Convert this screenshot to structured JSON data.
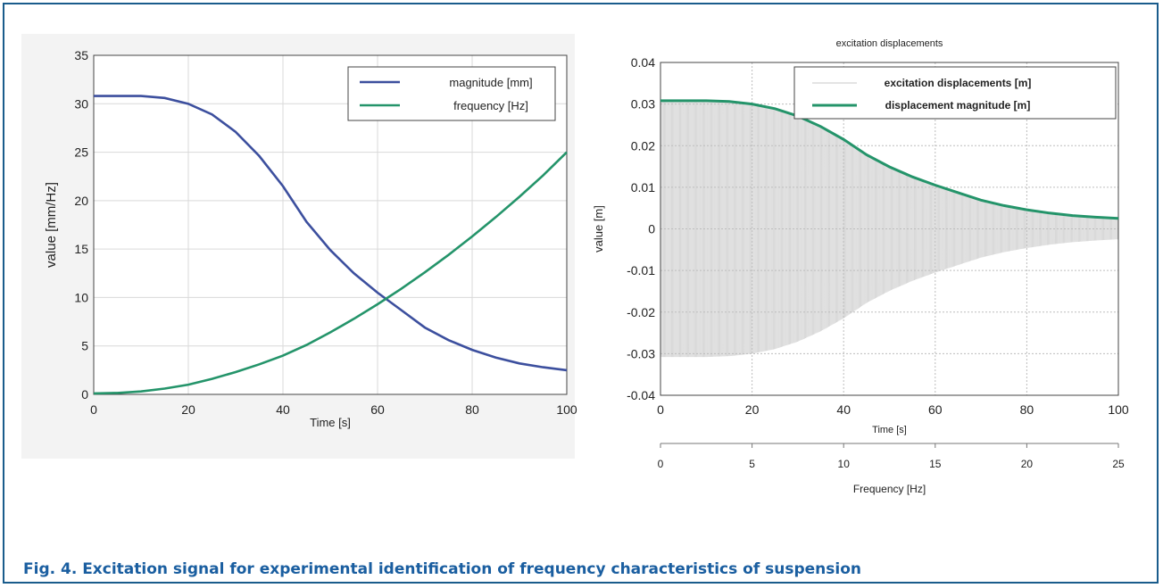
{
  "caption": "Fig. 4. Excitation signal for experimental identification of frequency characteristics of suspension",
  "colors": {
    "frame": "#1a5c8c",
    "caption": "#1a5ea0",
    "magnitude": "#3c4f9e",
    "frequency": "#24946a",
    "excitation": "#c8c8c8",
    "grid": "#d9d9d9"
  },
  "chart_data": [
    {
      "type": "line",
      "title": "",
      "xlabel": "Time [s]",
      "ylabel": "value    [mm/Hz]",
      "xlim": [
        0,
        100
      ],
      "ylim": [
        0,
        35
      ],
      "xticks": [
        0,
        20,
        40,
        60,
        80,
        100
      ],
      "yticks": [
        0,
        5,
        10,
        15,
        20,
        25,
        30,
        35
      ],
      "grid": true,
      "legend_position": "top-right",
      "x": [
        0,
        5,
        10,
        15,
        20,
        25,
        30,
        35,
        40,
        45,
        50,
        55,
        60,
        65,
        70,
        75,
        80,
        85,
        90,
        95,
        100
      ],
      "series": [
        {
          "name": "magnitude [mm]",
          "values": [
            30.8,
            30.8,
            30.8,
            30.6,
            30.0,
            28.9,
            27.1,
            24.6,
            21.5,
            17.8,
            14.9,
            12.5,
            10.5,
            8.7,
            6.9,
            5.6,
            4.6,
            3.8,
            3.2,
            2.8,
            2.5
          ]
        },
        {
          "name": "frequency [Hz]",
          "values": [
            0.1,
            0.15,
            0.3,
            0.6,
            1.0,
            1.6,
            2.3,
            3.1,
            4.0,
            5.1,
            6.4,
            7.8,
            9.3,
            10.9,
            12.6,
            14.4,
            16.3,
            18.3,
            20.4,
            22.6,
            25.0
          ]
        }
      ]
    },
    {
      "type": "line",
      "title": "excitation displacements",
      "xlabel": "Time [s]",
      "ylabel": "value    [m]",
      "x2label": "Frequency [Hz]",
      "xlim": [
        0,
        100
      ],
      "ylim": [
        -0.04,
        0.04
      ],
      "x2lim": [
        0,
        25
      ],
      "xticks": [
        0,
        20,
        40,
        60,
        80,
        100
      ],
      "x2ticks": [
        0,
        5,
        10,
        15,
        20,
        25
      ],
      "yticks": [
        -0.04,
        -0.03,
        -0.02,
        -0.01,
        0,
        0.01,
        0.02,
        0.03,
        0.04
      ],
      "ytick_labels": [
        "-0.04",
        "-0.03",
        "-0.02",
        "-0.01",
        "0",
        "0.01",
        "0.02",
        "0.03",
        "0.04"
      ],
      "grid": true,
      "legend_position": "top-right",
      "x": [
        0,
        5,
        10,
        15,
        20,
        25,
        30,
        35,
        40,
        45,
        50,
        55,
        60,
        65,
        70,
        75,
        80,
        85,
        90,
        95,
        100
      ],
      "series": [
        {
          "name": "excitation displacements [m]",
          "style": "oscillation-envelope",
          "values": [
            0.0308,
            0.0308,
            0.0308,
            0.0306,
            0.03,
            0.0289,
            0.0271,
            0.0246,
            0.0215,
            0.0178,
            0.0149,
            0.0125,
            0.0105,
            0.0087,
            0.0069,
            0.0056,
            0.0046,
            0.0038,
            0.0032,
            0.0028,
            0.0025
          ]
        },
        {
          "name": "displacement magnitude [m]",
          "values": [
            0.0308,
            0.0308,
            0.0308,
            0.0306,
            0.03,
            0.0289,
            0.0271,
            0.0246,
            0.0215,
            0.0178,
            0.0149,
            0.0125,
            0.0105,
            0.0087,
            0.0069,
            0.0056,
            0.0046,
            0.0038,
            0.0032,
            0.0028,
            0.0025
          ]
        }
      ]
    }
  ]
}
